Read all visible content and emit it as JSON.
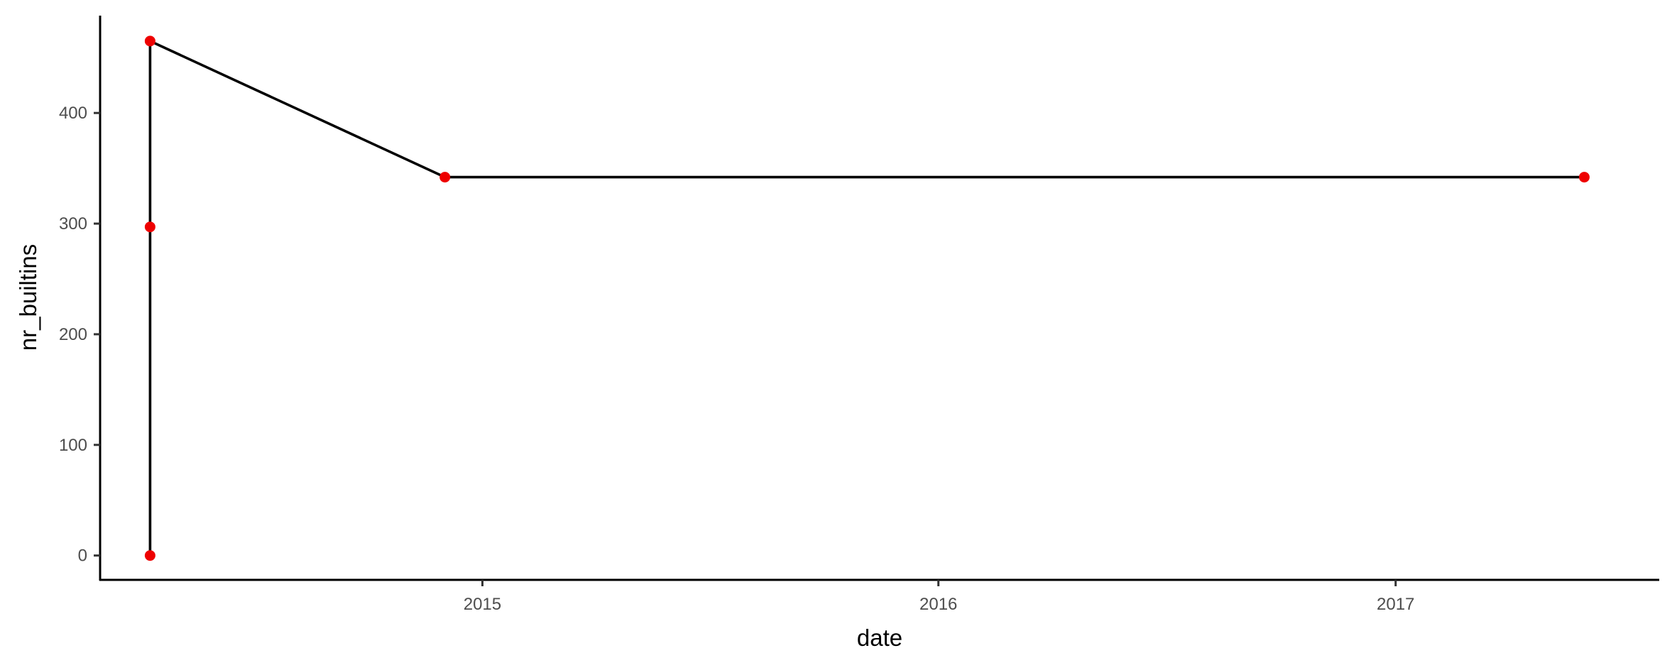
{
  "chart_data": {
    "type": "line",
    "title": "",
    "xlabel": "date",
    "ylabel": "nr_builtins",
    "grid": false,
    "legend": "none",
    "x_scale": "date",
    "xlim": [
      "2014-03-01",
      "2017-07-31"
    ],
    "ylim": [
      -22,
      488
    ],
    "x_ticks": [
      {
        "value": "2015-01-01",
        "label": "2015"
      },
      {
        "value": "2016-01-01",
        "label": "2016"
      },
      {
        "value": "2017-01-01",
        "label": "2017"
      }
    ],
    "y_ticks": [
      {
        "value": 0,
        "label": "0"
      },
      {
        "value": 100,
        "label": "100"
      },
      {
        "value": 200,
        "label": "200"
      },
      {
        "value": 300,
        "label": "300"
      },
      {
        "value": 400,
        "label": "400"
      }
    ],
    "series": [
      {
        "line_color": "#000000",
        "point_color": "#ee0000",
        "points": [
          {
            "x": "2014-04-10",
            "y": 0
          },
          {
            "x": "2014-04-10",
            "y": 297
          },
          {
            "x": "2014-04-10",
            "y": 465
          },
          {
            "x": "2014-12-02",
            "y": 342
          },
          {
            "x": "2017-06-01",
            "y": 342
          }
        ]
      }
    ]
  }
}
